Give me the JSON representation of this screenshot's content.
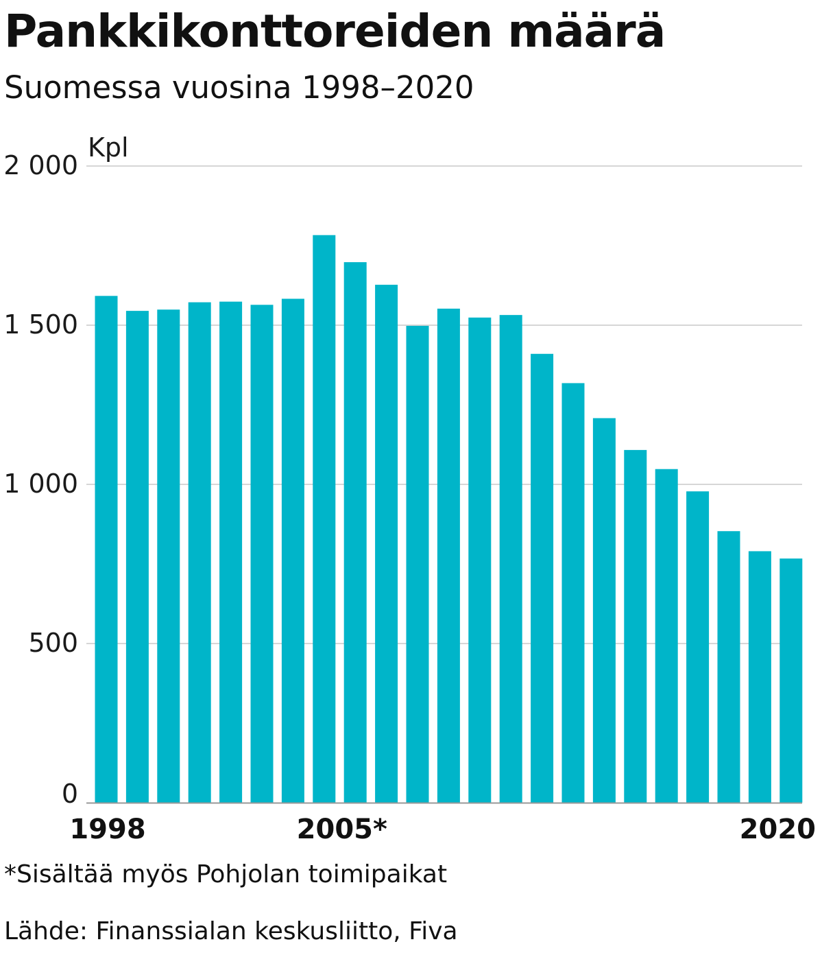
{
  "chart_data": {
    "type": "bar",
    "title": "Pankkikonttoreiden määrä",
    "subtitle": "Suomessa vuosina 1998–2020",
    "ylabel": "Kpl",
    "xlabel": "",
    "ylim": [
      0,
      2000
    ],
    "yticks": [
      {
        "value": 0,
        "label": "0"
      },
      {
        "value": 500,
        "label": "500"
      },
      {
        "value": 1000,
        "label": "1 000"
      },
      {
        "value": 1500,
        "label": "1 500"
      },
      {
        "value": 2000,
        "label": "2 000"
      }
    ],
    "grid": true,
    "categories": [
      "1998",
      "1999",
      "2000",
      "2001",
      "2002",
      "2003",
      "2004",
      "2005",
      "2006",
      "2007",
      "2008",
      "2009",
      "2010",
      "2011",
      "2012",
      "2013",
      "2014",
      "2015",
      "2016",
      "2017",
      "2018",
      "2019",
      "2020"
    ],
    "values": [
      1592,
      1545,
      1549,
      1572,
      1574,
      1564,
      1583,
      1783,
      1698,
      1627,
      1498,
      1552,
      1524,
      1532,
      1410,
      1318,
      1208,
      1108,
      1048,
      978,
      853,
      790,
      767
    ],
    "xtick_labels": [
      {
        "index": 0,
        "label": "1998"
      },
      {
        "index": 7,
        "label": "2005*"
      },
      {
        "index": 22,
        "label": "2020"
      }
    ],
    "bar_color": "#00b5c9",
    "grid_color": "#c8c8c8",
    "axis_color": "#999999",
    "footnote": "*Sisältää myös Pohjolan toimipaikat",
    "source": "Lähde: Finanssialan keskusliitto, Fiva"
  }
}
